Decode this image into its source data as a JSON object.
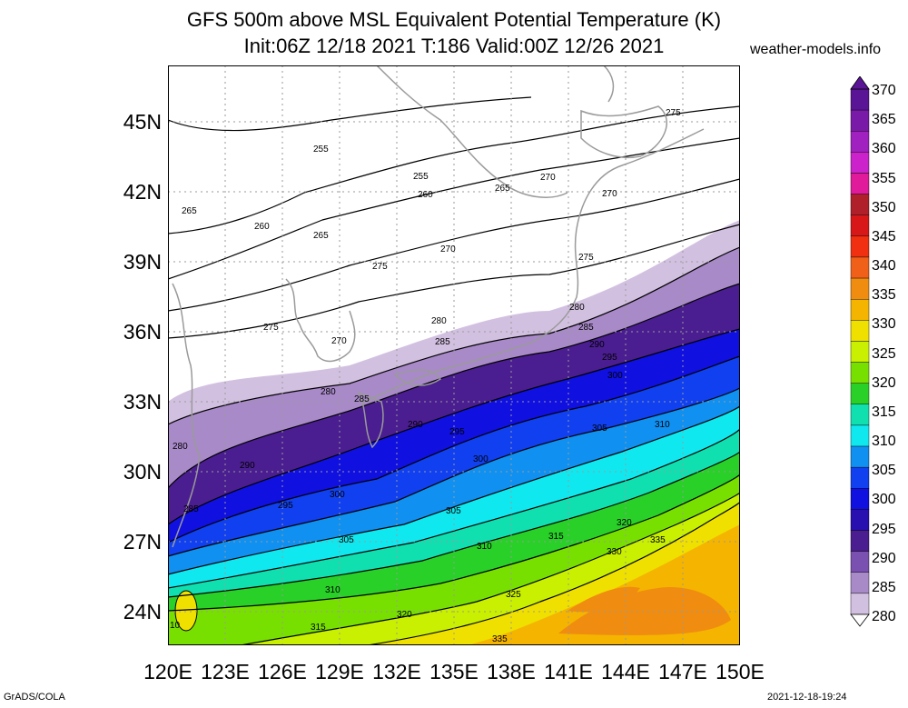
{
  "title": {
    "line1": "GFS 500m above MSL Equivalent Potential Temperature (K)",
    "line2": "Init:06Z 12/18 2021 T:186 Valid:00Z 12/26 2021"
  },
  "site": "weather-models.info",
  "footer": {
    "left": "GrADS/COLA",
    "right": "2021-12-18-19:24"
  },
  "axes": {
    "lat_labels": [
      "45N",
      "42N",
      "39N",
      "36N",
      "33N",
      "30N",
      "27N",
      "24N"
    ],
    "lon_labels": [
      "120E",
      "123E",
      "126E",
      "129E",
      "132E",
      "135E",
      "138E",
      "141E",
      "144E",
      "147E",
      "150E"
    ]
  },
  "colorbar": {
    "labels": [
      "370",
      "365",
      "360",
      "355",
      "350",
      "345",
      "340",
      "335",
      "330",
      "325",
      "320",
      "315",
      "310",
      "305",
      "300",
      "295",
      "290",
      "285",
      "280"
    ],
    "colors": [
      "#5a1496",
      "#7a1aa8",
      "#a020c0",
      "#cc22cc",
      "#e01a9a",
      "#b0202a",
      "#d81818",
      "#f03010",
      "#f06018",
      "#f08c10",
      "#f4b400",
      "#f0e000",
      "#c8f000",
      "#78e000",
      "#28d028",
      "#10e0b0",
      "#10e8f0",
      "#1090f0",
      "#1040f0",
      "#1010e0",
      "#2810b0",
      "#4a1e90",
      "#7a50b0",
      "#a88ac8",
      "#d2c0e0"
    ]
  },
  "contour_labels": [
    "255",
    "260",
    "265",
    "270",
    "275",
    "280",
    "285",
    "290",
    "295",
    "300",
    "305",
    "310",
    "315",
    "320",
    "325",
    "330",
    "335",
    "10"
  ]
}
